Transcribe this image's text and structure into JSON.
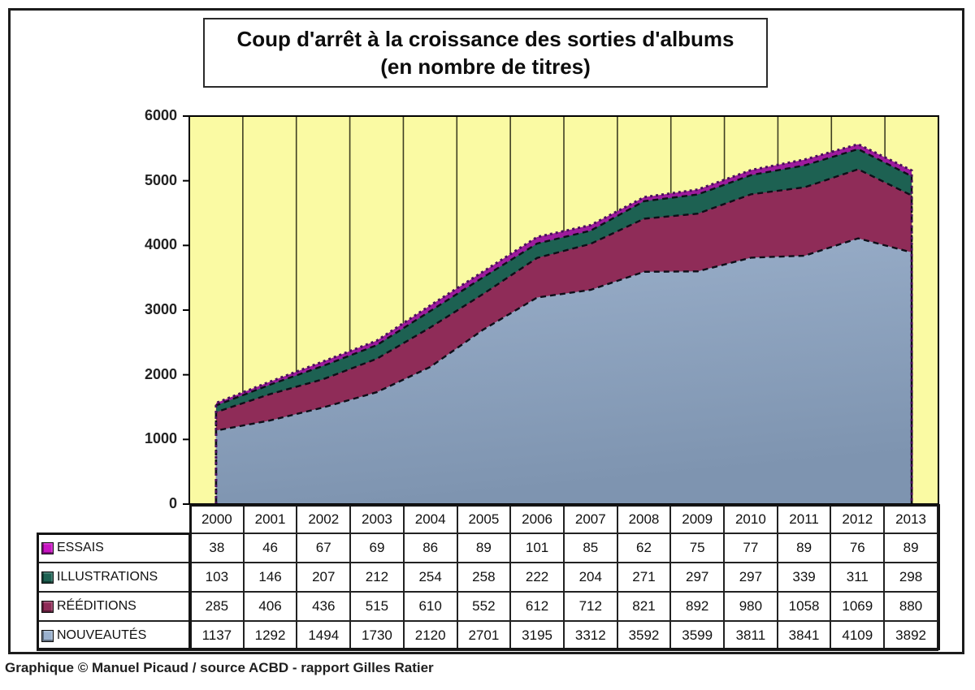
{
  "title": {
    "line1": "Coup d'arrêt à la croissance des sorties d'albums",
    "line2": "(en nombre de titres)"
  },
  "caption": "Graphique © Manuel Picaud / source ACBD - rapport Gilles Ratier",
  "chart_data": {
    "type": "area",
    "stacked": true,
    "title": "Coup d'arrêt à la croissance des sorties d'albums (en nombre de titres)",
    "x": [
      2000,
      2001,
      2002,
      2003,
      2004,
      2005,
      2006,
      2007,
      2008,
      2009,
      2010,
      2011,
      2012,
      2013
    ],
    "series": [
      {
        "name": "ESSAIS",
        "color": "#9D1B9D",
        "swatch_color": "#C914C3",
        "values": [
          38,
          46,
          67,
          69,
          86,
          89,
          101,
          85,
          62,
          75,
          77,
          89,
          76,
          89
        ]
      },
      {
        "name": "ILLUSTRATIONS",
        "color": "#1D6152",
        "swatch_color": "#1D6152",
        "values": [
          103,
          146,
          207,
          212,
          254,
          258,
          222,
          204,
          271,
          297,
          297,
          339,
          311,
          298
        ]
      },
      {
        "name": "RÉÉDITIONS",
        "color": "#8F2C58",
        "swatch_color": "#8F2C58",
        "values": [
          285,
          406,
          436,
          515,
          610,
          552,
          612,
          712,
          821,
          892,
          980,
          1058,
          1069,
          880
        ]
      },
      {
        "name": "NOUVEAUTÉS",
        "color": "#8CA2BE",
        "swatch_color": "#9AB1CE",
        "values": [
          1137,
          1292,
          1494,
          1730,
          2120,
          2701,
          3195,
          3312,
          3592,
          3599,
          3811,
          3841,
          4109,
          3892
        ]
      }
    ],
    "stack_order_bottom_to_top": [
      "NOUVEAUTÉS",
      "RÉÉDITIONS",
      "ILLUSTRATIONS",
      "ESSAIS"
    ],
    "ylim": [
      0,
      6000
    ],
    "ytick_step": 1000,
    "yticks": [
      0,
      1000,
      2000,
      3000,
      4000,
      5000,
      6000
    ],
    "grid": "vertical-category-lines",
    "plot_bg": "#FAFAA3",
    "gridline_color": "#3F3F22",
    "boundary_line_color": "#0e0e18",
    "top_edge_color": "#4A0E5C",
    "legend_position": "table-left"
  }
}
